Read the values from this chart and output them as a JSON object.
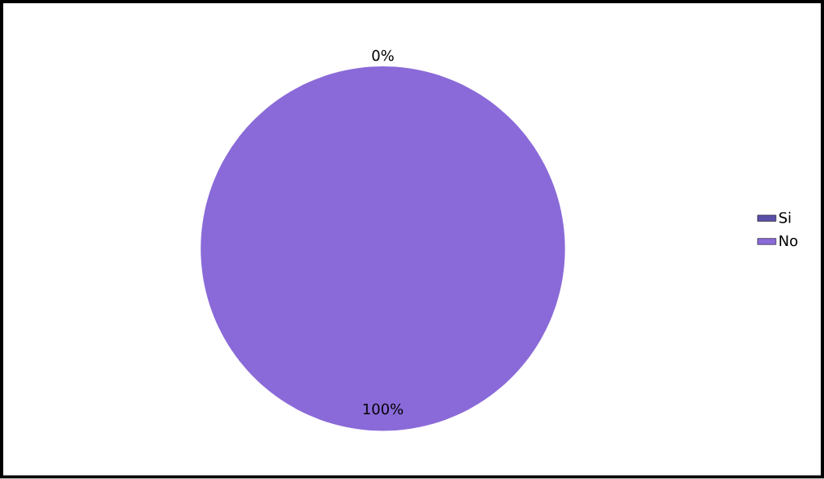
{
  "chart_data": {
    "type": "pie",
    "categories": [
      "Si",
      "No"
    ],
    "values": [
      0,
      100
    ],
    "colors": [
      "#5a4fa8",
      "#8a6ad8"
    ],
    "value_labels": [
      "0%",
      "100%"
    ],
    "legend": "right"
  }
}
